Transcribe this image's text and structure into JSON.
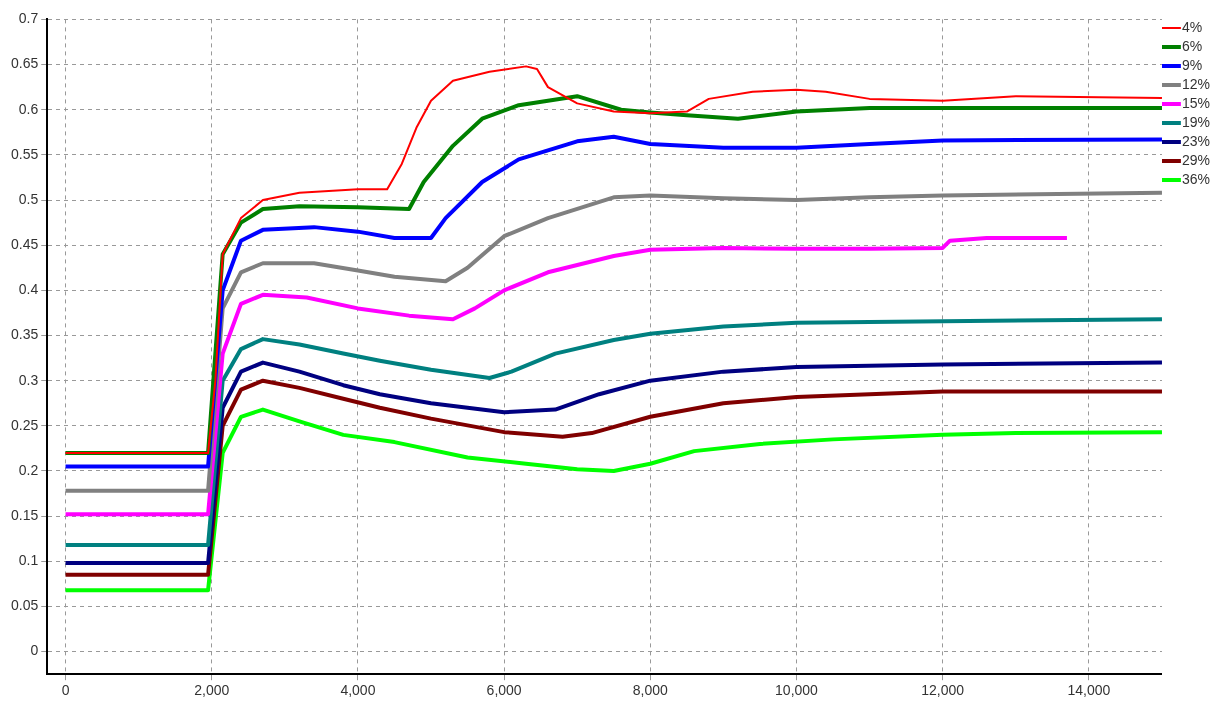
{
  "chart_data": {
    "type": "line",
    "xlim": [
      -250,
      15000
    ],
    "ylim": [
      -0.025,
      0.7
    ],
    "xticks": [
      0,
      {
        "value": 2000,
        "label": "2,000"
      },
      {
        "value": 4000,
        "label": "4,000"
      },
      {
        "value": 6000,
        "label": "6,000"
      },
      {
        "value": 8000,
        "label": "8,000"
      },
      {
        "value": 10000,
        "label": "10,000"
      },
      {
        "value": 12000,
        "label": "12,000"
      },
      {
        "value": 14000,
        "label": "14,000"
      }
    ],
    "yticks": [
      0,
      0.05,
      0.1,
      0.15,
      0.2,
      0.25,
      0.3,
      0.35,
      0.4,
      0.45,
      0.5,
      0.55,
      0.6,
      0.65,
      0.7
    ],
    "grid": true,
    "legend": "top right",
    "marker": "none",
    "line_style": "solid",
    "series": [
      {
        "name": "4%",
        "color": "#ff0000",
        "x": [
          0,
          1950,
          2050,
          2150,
          2400,
          2700,
          3200,
          4000,
          4400,
          4600,
          4800,
          5000,
          5300,
          5800,
          6300,
          6450,
          6600,
          7000,
          7500,
          8000,
          8500,
          8800,
          9400,
          10000,
          10400,
          11000,
          12000,
          13000,
          15000
        ],
        "values": [
          0.22,
          0.22,
          0.3,
          0.44,
          0.48,
          0.5,
          0.508,
          0.512,
          0.512,
          0.54,
          0.58,
          0.61,
          0.632,
          0.642,
          0.648,
          0.645,
          0.625,
          0.607,
          0.598,
          0.596,
          0.598,
          0.612,
          0.62,
          0.622,
          0.62,
          0.612,
          0.61,
          0.615,
          0.613
        ]
      },
      {
        "name": "6%",
        "color": "#008000",
        "x": [
          0,
          1950,
          2150,
          2400,
          2700,
          3200,
          4000,
          4700,
          4900,
          5300,
          5700,
          6200,
          7000,
          7600,
          8000,
          8500,
          9200,
          10000,
          11000,
          15000
        ],
        "values": [
          0.22,
          0.22,
          0.44,
          0.475,
          0.49,
          0.493,
          0.492,
          0.49,
          0.52,
          0.56,
          0.59,
          0.605,
          0.615,
          0.6,
          0.597,
          0.594,
          0.59,
          0.598,
          0.602,
          0.602
        ]
      },
      {
        "name": "9%",
        "color": "#0000ff",
        "x": [
          0,
          1950,
          2150,
          2400,
          2700,
          3400,
          4000,
          4500,
          5000,
          5200,
          5700,
          6200,
          7000,
          7500,
          8000,
          9000,
          10000,
          11000,
          12000,
          15000
        ],
        "values": [
          0.205,
          0.205,
          0.4,
          0.455,
          0.467,
          0.47,
          0.465,
          0.458,
          0.458,
          0.48,
          0.52,
          0.545,
          0.565,
          0.57,
          0.562,
          0.558,
          0.558,
          0.562,
          0.566,
          0.567
        ]
      },
      {
        "name": "12%",
        "color": "#808080",
        "x": [
          0,
          1950,
          2150,
          2400,
          2700,
          3400,
          4000,
          4500,
          5200,
          5500,
          6000,
          6600,
          7500,
          8000,
          9000,
          10000,
          11000,
          12000,
          15000
        ],
        "values": [
          0.178,
          0.178,
          0.38,
          0.42,
          0.43,
          0.43,
          0.422,
          0.415,
          0.41,
          0.425,
          0.46,
          0.48,
          0.503,
          0.505,
          0.502,
          0.5,
          0.503,
          0.505,
          0.508
        ]
      },
      {
        "name": "15%",
        "color": "#ff00ff",
        "x": [
          0,
          1950,
          2150,
          2400,
          2700,
          3300,
          4000,
          4700,
          5300,
          5600,
          6000,
          6600,
          7500,
          8000,
          9000,
          10000,
          11000,
          12000,
          12100,
          12600,
          13700
        ],
        "values": [
          0.152,
          0.152,
          0.33,
          0.385,
          0.395,
          0.392,
          0.38,
          0.372,
          0.368,
          0.38,
          0.4,
          0.42,
          0.438,
          0.445,
          0.447,
          0.446,
          0.446,
          0.447,
          0.455,
          0.458,
          0.458
        ]
      },
      {
        "name": "19%",
        "color": "#008080",
        "x": [
          0,
          1950,
          2150,
          2400,
          2700,
          3200,
          3800,
          4300,
          5000,
          5800,
          6100,
          6700,
          7500,
          8000,
          9000,
          10000,
          11000,
          15000
        ],
        "values": [
          0.118,
          0.118,
          0.3,
          0.335,
          0.346,
          0.34,
          0.33,
          0.322,
          0.312,
          0.303,
          0.31,
          0.33,
          0.345,
          0.352,
          0.36,
          0.364,
          0.365,
          0.368
        ]
      },
      {
        "name": "23%",
        "color": "#000080",
        "x": [
          0,
          1950,
          2150,
          2400,
          2700,
          3200,
          3800,
          4300,
          5000,
          6000,
          6700,
          7300,
          8000,
          9000,
          10000,
          12000,
          15000
        ],
        "values": [
          0.098,
          0.098,
          0.27,
          0.31,
          0.32,
          0.31,
          0.295,
          0.285,
          0.275,
          0.265,
          0.268,
          0.285,
          0.3,
          0.31,
          0.315,
          0.318,
          0.32
        ]
      },
      {
        "name": "29%",
        "color": "#800000",
        "x": [
          0,
          1950,
          2150,
          2400,
          2700,
          3200,
          3800,
          4300,
          5000,
          6000,
          6800,
          7200,
          8000,
          9000,
          10000,
          12000,
          15000
        ],
        "values": [
          0.085,
          0.085,
          0.25,
          0.29,
          0.3,
          0.292,
          0.28,
          0.27,
          0.258,
          0.243,
          0.238,
          0.242,
          0.26,
          0.275,
          0.282,
          0.288,
          0.288
        ]
      },
      {
        "name": "36%",
        "color": "#00ff00",
        "x": [
          0,
          1950,
          2150,
          2400,
          2700,
          3200,
          3800,
          4500,
          5500,
          6300,
          7000,
          7500,
          8000,
          8600,
          9500,
          10500,
          12000,
          13000,
          15000
        ],
        "values": [
          0.068,
          0.068,
          0.22,
          0.26,
          0.268,
          0.255,
          0.24,
          0.232,
          0.215,
          0.208,
          0.202,
          0.2,
          0.208,
          0.222,
          0.23,
          0.235,
          0.24,
          0.242,
          0.243
        ]
      }
    ]
  }
}
